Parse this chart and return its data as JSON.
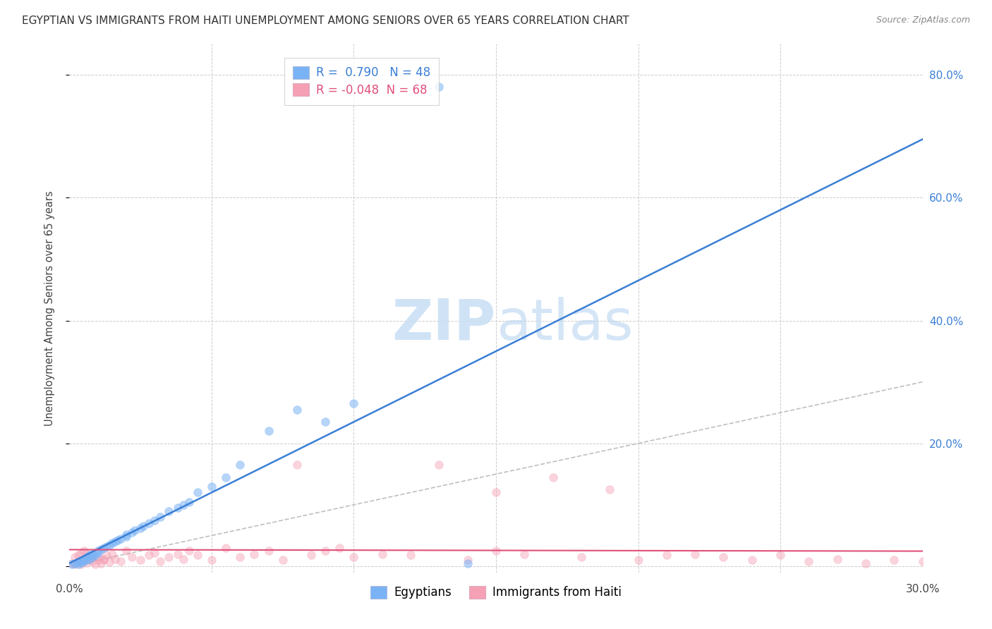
{
  "title": "EGYPTIAN VS IMMIGRANTS FROM HAITI UNEMPLOYMENT AMONG SENIORS OVER 65 YEARS CORRELATION CHART",
  "source": "Source: ZipAtlas.com",
  "ylabel": "Unemployment Among Seniors over 65 years",
  "xlim": [
    0.0,
    0.3
  ],
  "ylim": [
    -0.01,
    0.85
  ],
  "grid_color": "#cccccc",
  "background_color": "#ffffff",
  "blue_color": "#7ab3f5",
  "pink_color": "#f5a0b5",
  "blue_line_color": "#3a7fd5",
  "pink_line_color": "#e0507a",
  "diagonal_color": "#b0b0b0",
  "legend_R_blue": " 0.790",
  "legend_N_blue": "48",
  "legend_R_pink": "-0.048",
  "legend_N_pink": "68",
  "legend_label_blue": "Egyptians",
  "legend_label_pink": "Immigrants from Haiti",
  "title_fontsize": 11,
  "source_fontsize": 9,
  "seed": 42,
  "blue_regression": [
    2.55,
    0.005
  ],
  "pink_regression": [
    -0.005,
    0.025
  ],
  "blue_x": [
    0.001,
    0.002,
    0.003,
    0.003,
    0.004,
    0.004,
    0.005,
    0.005,
    0.006,
    0.006,
    0.007,
    0.007,
    0.008,
    0.008,
    0.009,
    0.01,
    0.01,
    0.011,
    0.012,
    0.013,
    0.014,
    0.015,
    0.016,
    0.017,
    0.018,
    0.02,
    0.02,
    0.022,
    0.023,
    0.025,
    0.026,
    0.028,
    0.03,
    0.032,
    0.035,
    0.038,
    0.04,
    0.042,
    0.045,
    0.05,
    0.055,
    0.06,
    0.07,
    0.08,
    0.09,
    0.1,
    0.13,
    0.14
  ],
  "blue_y": [
    0.003,
    0.005,
    0.004,
    0.007,
    0.006,
    0.009,
    0.008,
    0.012,
    0.01,
    0.015,
    0.012,
    0.018,
    0.015,
    0.02,
    0.018,
    0.022,
    0.025,
    0.028,
    0.03,
    0.032,
    0.035,
    0.038,
    0.04,
    0.042,
    0.045,
    0.048,
    0.052,
    0.055,
    0.058,
    0.062,
    0.065,
    0.07,
    0.075,
    0.08,
    0.09,
    0.095,
    0.1,
    0.105,
    0.12,
    0.13,
    0.145,
    0.165,
    0.22,
    0.255,
    0.235,
    0.265,
    0.78,
    0.005
  ],
  "pink_x": [
    0.001,
    0.002,
    0.003,
    0.004,
    0.005,
    0.006,
    0.007,
    0.008,
    0.009,
    0.01,
    0.011,
    0.012,
    0.013,
    0.014,
    0.015,
    0.016,
    0.018,
    0.02,
    0.022,
    0.025,
    0.028,
    0.03,
    0.032,
    0.035,
    0.038,
    0.04,
    0.042,
    0.045,
    0.05,
    0.055,
    0.06,
    0.065,
    0.07,
    0.075,
    0.08,
    0.085,
    0.09,
    0.095,
    0.1,
    0.11,
    0.12,
    0.13,
    0.14,
    0.15,
    0.16,
    0.17,
    0.18,
    0.19,
    0.2,
    0.21,
    0.22,
    0.23,
    0.24,
    0.25,
    0.26,
    0.27,
    0.28,
    0.29,
    0.3,
    0.15,
    0.002,
    0.003,
    0.004,
    0.005,
    0.006,
    0.008,
    0.01,
    0.012
  ],
  "pink_y": [
    0.005,
    0.003,
    0.008,
    0.004,
    0.01,
    0.006,
    0.012,
    0.008,
    0.003,
    0.015,
    0.005,
    0.01,
    0.018,
    0.007,
    0.02,
    0.012,
    0.008,
    0.025,
    0.015,
    0.01,
    0.018,
    0.022,
    0.008,
    0.015,
    0.02,
    0.012,
    0.025,
    0.018,
    0.01,
    0.03,
    0.015,
    0.02,
    0.025,
    0.01,
    0.165,
    0.018,
    0.025,
    0.03,
    0.015,
    0.02,
    0.018,
    0.165,
    0.01,
    0.025,
    0.02,
    0.145,
    0.015,
    0.125,
    0.01,
    0.018,
    0.02,
    0.015,
    0.01,
    0.018,
    0.008,
    0.012,
    0.005,
    0.01,
    0.008,
    0.12,
    0.015,
    0.018,
    0.022,
    0.025,
    0.02,
    0.015,
    0.01,
    0.012
  ]
}
